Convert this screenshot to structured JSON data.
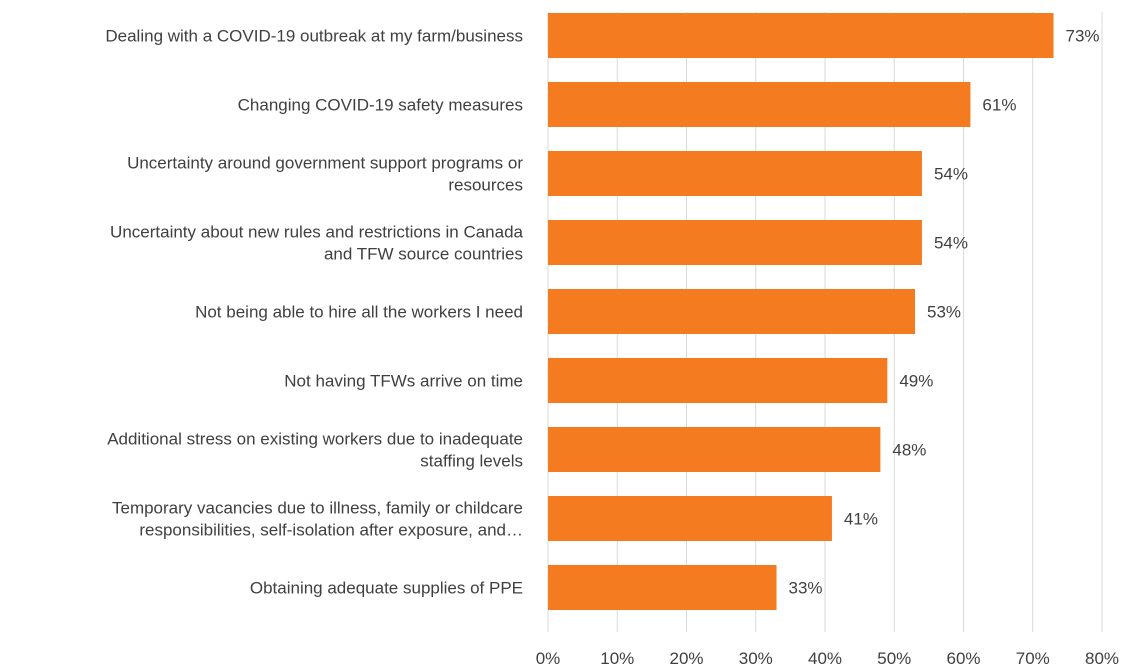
{
  "chart_data": {
    "type": "bar",
    "orientation": "horizontal",
    "categories": [
      [
        "Dealing with a COVID-19 outbreak at my farm/business"
      ],
      [
        "Changing COVID-19 safety measures"
      ],
      [
        "Uncertainty around government support programs or",
        "resources"
      ],
      [
        "Uncertainty about new rules and restrictions in Canada",
        "and TFW source countries"
      ],
      [
        "Not being able to hire all the workers I need"
      ],
      [
        "Not having TFWs arrive on time"
      ],
      [
        "Additional stress on existing workers due to inadequate",
        "staffing levels"
      ],
      [
        "Temporary vacancies due to illness, family or childcare",
        "responsibilities, self-isolation after exposure, and…"
      ],
      [
        "Obtaining adequate supplies of PPE"
      ]
    ],
    "values": [
      73,
      61,
      54,
      54,
      53,
      49,
      48,
      41,
      33
    ],
    "value_labels": [
      "73%",
      "61%",
      "54%",
      "54%",
      "53%",
      "49%",
      "48%",
      "41%",
      "33%"
    ],
    "xlim": [
      0,
      80
    ],
    "x_ticks": [
      0,
      10,
      20,
      30,
      40,
      50,
      60,
      70,
      80
    ],
    "x_tick_labels": [
      "0%",
      "10%",
      "20%",
      "30%",
      "40%",
      "50%",
      "60%",
      "70%",
      "80%"
    ],
    "title": "",
    "xlabel": "",
    "ylabel": "",
    "grid": "vertical",
    "legend": "none",
    "bar_color": "#F47B20",
    "grid_color": "#D9D9D9",
    "text_color": "#404040"
  }
}
